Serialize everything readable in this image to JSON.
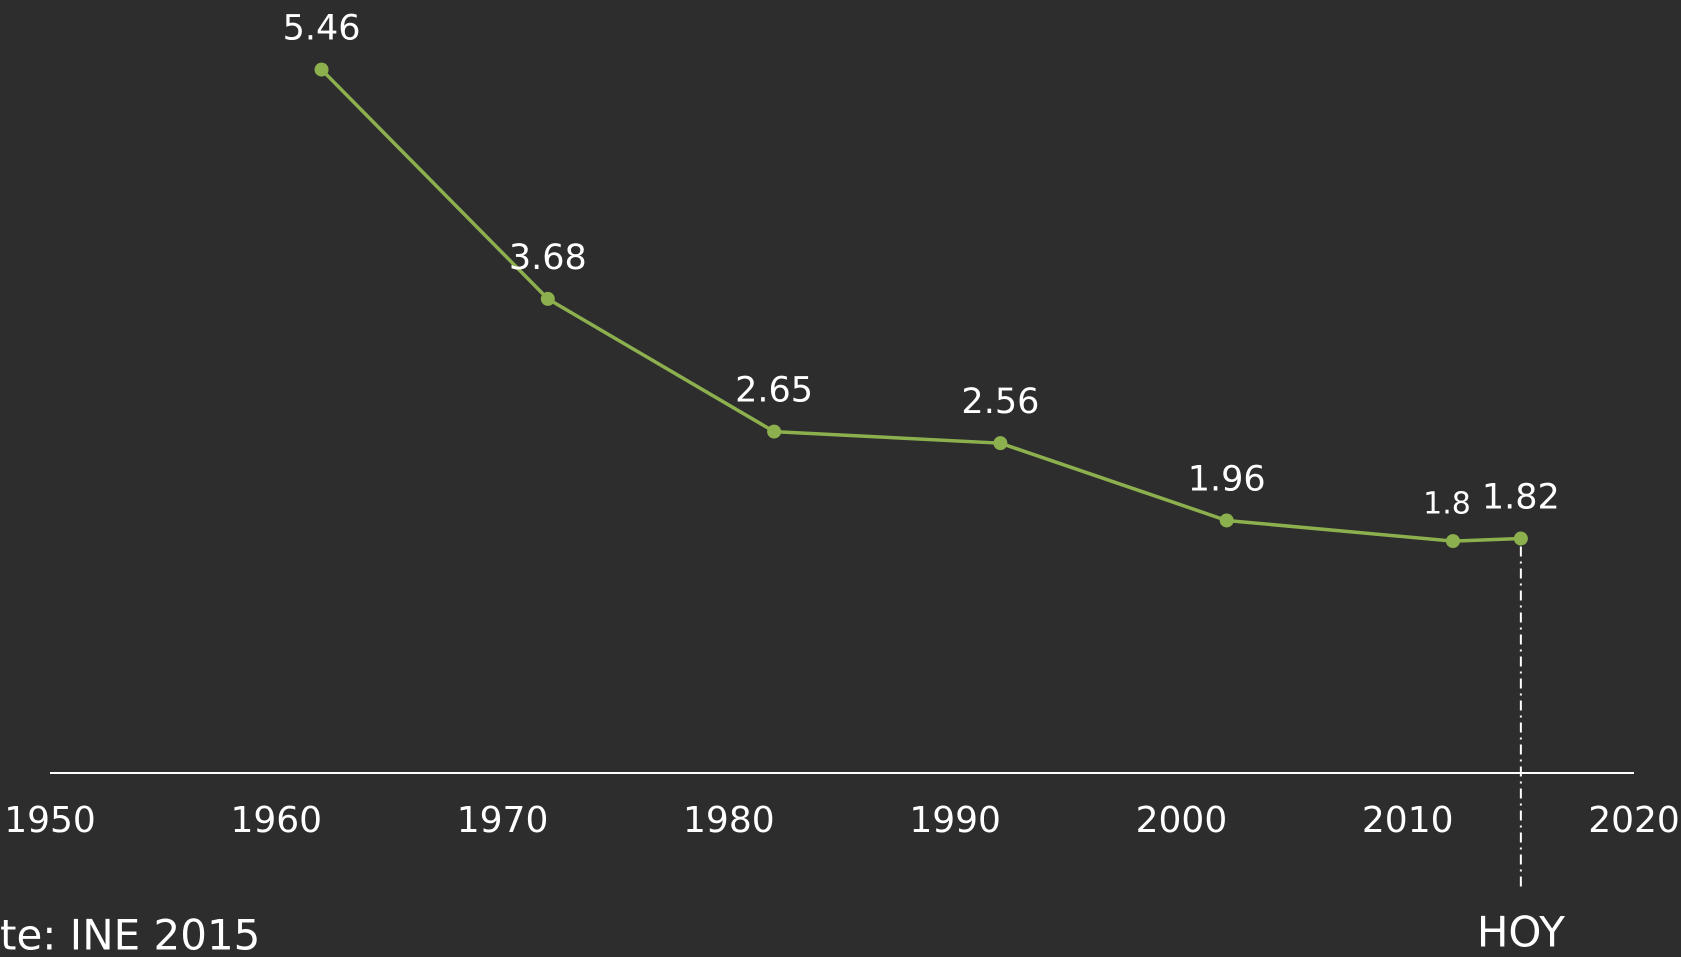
{
  "chart_data": {
    "type": "line",
    "x": [
      1962,
      1972,
      1982,
      1992,
      2002,
      2012,
      2015
    ],
    "series": [
      {
        "color": "#8db04f",
        "values": [
          5.46,
          3.68,
          2.65,
          2.56,
          1.96,
          1.8,
          1.82
        ]
      }
    ],
    "xlim": [
      1950,
      2020
    ],
    "xticks": [
      1950,
      1960,
      1970,
      1980,
      1990,
      2000,
      2010,
      2020
    ],
    "ylim": [
      0,
      6
    ],
    "annotation": {
      "text": "HOY",
      "x": 2015
    },
    "source": "te: INE 2015"
  }
}
